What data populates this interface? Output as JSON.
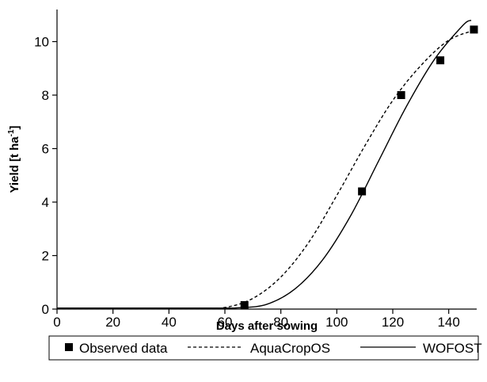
{
  "chart_data": {
    "type": "line",
    "title": "",
    "xlabel": "Days after sowing",
    "ylabel": "Yield [t ha-1]",
    "ylabel_main": "Yield [t ha",
    "ylabel_sup": "-1",
    "ylabel_tail": "]",
    "xlim": [
      0,
      150
    ],
    "ylim": [
      0,
      11.2
    ],
    "xticks": [
      0,
      20,
      40,
      60,
      80,
      100,
      120,
      140
    ],
    "yticks": [
      0,
      2,
      4,
      6,
      8,
      10
    ],
    "grid": false,
    "legend_position": "bottom",
    "series": [
      {
        "name": "Observed data",
        "style": "markers",
        "marker": "square",
        "color": "#000000",
        "points": [
          [
            67,
            0.15
          ],
          [
            109,
            4.4
          ],
          [
            123,
            8.0
          ],
          [
            137,
            9.3
          ],
          [
            149,
            10.45
          ]
        ]
      },
      {
        "name": "AquaCropOS",
        "style": "dashed",
        "color": "#000000",
        "points": [
          [
            0,
            0.04
          ],
          [
            50,
            0.04
          ],
          [
            60,
            0.06
          ],
          [
            70,
            0.4
          ],
          [
            80,
            1.2
          ],
          [
            90,
            2.5
          ],
          [
            100,
            4.25
          ],
          [
            110,
            6.1
          ],
          [
            120,
            7.8
          ],
          [
            130,
            9.1
          ],
          [
            140,
            10.05
          ],
          [
            150,
            10.45
          ]
        ]
      },
      {
        "name": "WOFOST",
        "style": "solid",
        "color": "#000000",
        "points": [
          [
            0,
            0.04
          ],
          [
            55,
            0.04
          ],
          [
            65,
            0.05
          ],
          [
            75,
            0.18
          ],
          [
            85,
            0.75
          ],
          [
            95,
            1.85
          ],
          [
            105,
            3.5
          ],
          [
            115,
            5.55
          ],
          [
            125,
            7.6
          ],
          [
            135,
            9.35
          ],
          [
            145,
            10.6
          ],
          [
            148,
            10.8
          ]
        ]
      }
    ]
  }
}
